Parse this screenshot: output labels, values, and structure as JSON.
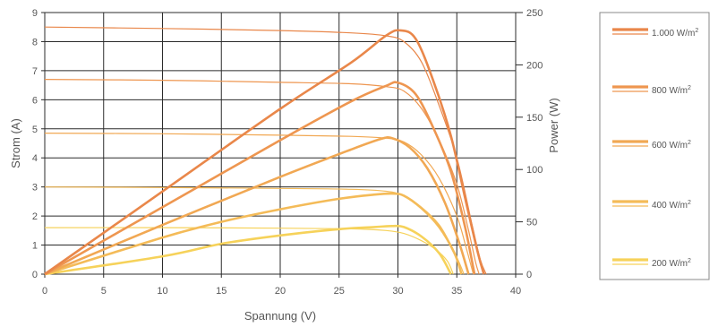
{
  "chart_data": {
    "type": "line",
    "xlabel": "Spannung (V)",
    "ylabel_left": "Strom (A)",
    "ylabel_right": "Power (W)",
    "xlim": [
      0,
      40
    ],
    "ylim_left": [
      0,
      9
    ],
    "ylim_right": [
      0,
      250
    ],
    "x_ticks": [
      "0",
      "5",
      "10",
      "15",
      "20",
      "25",
      "30",
      "35",
      "40"
    ],
    "y_left_ticks": [
      "0",
      "1",
      "2",
      "3",
      "4",
      "5",
      "6",
      "7",
      "8",
      "9"
    ],
    "y_right_ticks": [
      "0",
      "50",
      "100",
      "150",
      "200",
      "250"
    ],
    "grid": true,
    "legend_position": "right",
    "series": [
      {
        "name": "1.000 W/m",
        "name_superscript": "2",
        "color": "#E9874A",
        "current": [
          [
            0,
            8.5
          ],
          [
            10,
            8.45
          ],
          [
            20,
            8.38
          ],
          [
            26,
            8.3
          ],
          [
            29,
            8.2
          ],
          [
            30.5,
            8.0
          ],
          [
            32,
            7.3
          ],
          [
            33.5,
            5.8
          ],
          [
            35,
            4.0
          ],
          [
            36.3,
            1.7
          ],
          [
            37.0,
            0.5
          ],
          [
            37.5,
            0
          ]
        ],
        "power": [
          [
            0,
            0
          ],
          [
            10,
            79
          ],
          [
            20,
            158
          ],
          [
            26,
            202
          ],
          [
            29,
            228
          ],
          [
            30.2,
            233
          ],
          [
            31.5,
            225
          ],
          [
            33,
            185
          ],
          [
            34.5,
            132
          ],
          [
            35.8,
            68
          ],
          [
            36.8,
            20
          ],
          [
            37.3,
            0
          ]
        ]
      },
      {
        "name": "800 W/m",
        "name_superscript": "2",
        "color": "#EE9650",
        "current": [
          [
            0,
            6.7
          ],
          [
            10,
            6.67
          ],
          [
            20,
            6.6
          ],
          [
            26,
            6.55
          ],
          [
            29,
            6.45
          ],
          [
            30.5,
            6.3
          ],
          [
            32,
            5.7
          ],
          [
            33.5,
            4.6
          ],
          [
            35,
            3.1
          ],
          [
            36.0,
            1.5
          ],
          [
            36.6,
            0.4
          ],
          [
            36.9,
            0
          ]
        ],
        "power": [
          [
            0,
            0
          ],
          [
            10,
            64
          ],
          [
            20,
            128
          ],
          [
            26,
            165
          ],
          [
            29,
            180
          ],
          [
            30,
            183
          ],
          [
            31.5,
            172
          ],
          [
            33,
            140
          ],
          [
            34.5,
            98
          ],
          [
            35.7,
            45
          ],
          [
            36.5,
            0
          ]
        ]
      },
      {
        "name": "600 W/m",
        "name_superscript": "2",
        "color": "#F1A853",
        "current": [
          [
            0,
            4.85
          ],
          [
            10,
            4.83
          ],
          [
            20,
            4.78
          ],
          [
            26,
            4.74
          ],
          [
            29,
            4.68
          ],
          [
            30.5,
            4.55
          ],
          [
            32,
            4.1
          ],
          [
            33.5,
            3.3
          ],
          [
            35,
            2.0
          ],
          [
            35.8,
            0.9
          ],
          [
            36.4,
            0
          ]
        ],
        "power": [
          [
            0,
            0
          ],
          [
            10,
            47
          ],
          [
            20,
            93
          ],
          [
            26,
            119
          ],
          [
            28.5,
            129
          ],
          [
            29.5,
            130
          ],
          [
            31,
            121
          ],
          [
            32.5,
            101
          ],
          [
            34,
            68
          ],
          [
            35.2,
            30
          ],
          [
            36.0,
            0
          ]
        ]
      },
      {
        "name": "400 W/m",
        "name_superscript": "2",
        "color": "#F4BB58",
        "current": [
          [
            0,
            3.0
          ],
          [
            10,
            2.98
          ],
          [
            20,
            2.95
          ],
          [
            26,
            2.92
          ],
          [
            29,
            2.85
          ],
          [
            30.5,
            2.7
          ],
          [
            32,
            2.3
          ],
          [
            33.5,
            1.7
          ],
          [
            34.5,
            1.0
          ],
          [
            35.2,
            0.4
          ],
          [
            35.6,
            0
          ]
        ],
        "power": [
          [
            0,
            0
          ],
          [
            10,
            35
          ],
          [
            15,
            50
          ],
          [
            20,
            62
          ],
          [
            25,
            72
          ],
          [
            28,
            76
          ],
          [
            29.5,
            77
          ],
          [
            30.5,
            75
          ],
          [
            32,
            63
          ],
          [
            33.5,
            45
          ],
          [
            34.8,
            20
          ],
          [
            35.4,
            0
          ]
        ]
      },
      {
        "name": "200 W/m",
        "name_superscript": "2",
        "color": "#F6D25A",
        "current": [
          [
            0,
            1.6
          ],
          [
            10,
            1.6
          ],
          [
            20,
            1.58
          ],
          [
            26,
            1.56
          ],
          [
            29,
            1.5
          ],
          [
            30.5,
            1.4
          ],
          [
            32,
            1.15
          ],
          [
            33.2,
            0.85
          ],
          [
            34.2,
            0.45
          ],
          [
            34.7,
            0
          ]
        ],
        "power": [
          [
            0,
            0
          ],
          [
            10,
            17
          ],
          [
            15,
            29
          ],
          [
            20,
            37
          ],
          [
            25,
            43
          ],
          [
            28,
            45
          ],
          [
            29.5,
            46
          ],
          [
            30.5,
            45
          ],
          [
            32,
            36
          ],
          [
            33.5,
            20
          ],
          [
            34.5,
            0
          ]
        ]
      }
    ]
  }
}
